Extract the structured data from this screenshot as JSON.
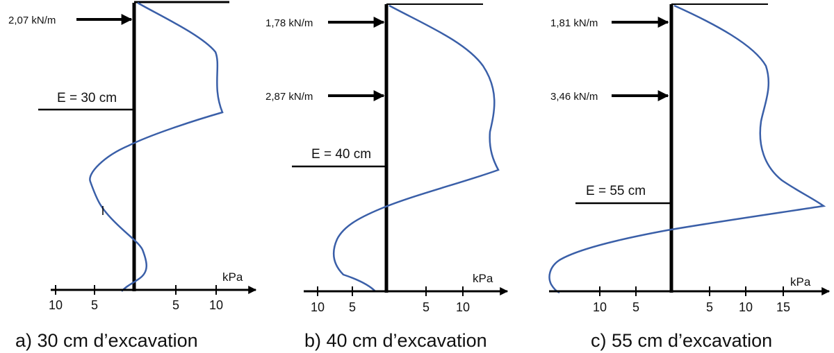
{
  "panels": [
    {
      "id": "a",
      "caption": "a)  30 cm d’excavation",
      "excavation_label": "E = 30 cm",
      "loads": [
        "2,07 kN/m"
      ],
      "unit_label": "kPa",
      "tick_labels": [
        "10",
        "5",
        "5",
        "10"
      ]
    },
    {
      "id": "b",
      "caption": "b)  40 cm d’excavation",
      "excavation_label": "E = 40 cm",
      "loads": [
        "1,78 kN/m",
        "2,87 kN/m"
      ],
      "unit_label": "kPa",
      "tick_labels": [
        "10",
        "5",
        "5",
        "10"
      ]
    },
    {
      "id": "c",
      "caption": "c)  55 cm d’excavation",
      "excavation_label": "E = 55 cm",
      "loads": [
        "1,81 kN/m",
        "3,46 kN/m"
      ],
      "unit_label": "kPa",
      "tick_labels": [
        "10",
        "5",
        "5",
        "10",
        "15"
      ]
    }
  ],
  "colors": {
    "curve": "#3a5fa8",
    "lines": "#000000"
  }
}
